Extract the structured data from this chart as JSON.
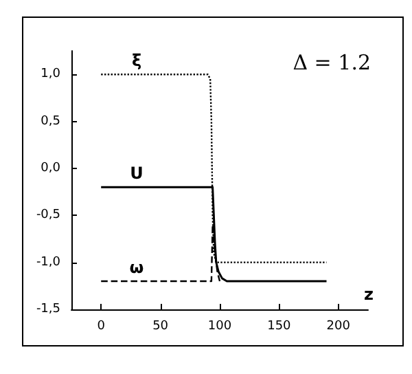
{
  "chart_data": {
    "type": "line",
    "xlabel": "z",
    "annotations": [
      "Δ = 1.2"
    ],
    "xlim": [
      -25,
      225
    ],
    "xticks": [
      0,
      50,
      100,
      150,
      200
    ],
    "ylim": [
      -1.5,
      1.25
    ],
    "yticks": [
      {
        "value": -1.5,
        "label": "-1,5"
      },
      {
        "value": -1,
        "label": "-1,0"
      },
      {
        "value": -0.5,
        "label": "-0,5"
      },
      {
        "value": 0,
        "label": "0,0"
      },
      {
        "value": 0.5,
        "label": "0,5"
      },
      {
        "value": 1,
        "label": "1,0"
      }
    ],
    "grid": false,
    "legend": false,
    "marker": "none",
    "series": [
      {
        "name": "ξ",
        "color": "#000000",
        "line_style": "dotted",
        "x": [
          0,
          30,
          90,
          92,
          93,
          94,
          95,
          97,
          190
        ],
        "values": [
          1,
          1,
          1,
          0.95,
          0.5,
          -0.5,
          -0.9,
          -1,
          -1
        ]
      },
      {
        "name": "U",
        "color": "#000000",
        "line_style": "solid",
        "x": [
          0,
          30,
          94,
          95,
          96,
          97,
          99,
          102,
          106,
          110,
          190
        ],
        "values": [
          -0.2,
          -0.2,
          -0.2,
          -0.5,
          -0.8,
          -1,
          -1.1,
          -1.17,
          -1.2,
          -1.2,
          -1.2
        ]
      },
      {
        "name": "ω",
        "color": "#000000",
        "line_style": "dashed",
        "x": [
          0,
          30,
          93,
          94,
          96,
          98,
          100
        ],
        "values": [
          -1.2,
          -1.2,
          -1.2,
          -0.6,
          -0.9,
          -1.1,
          -1.2
        ]
      }
    ]
  }
}
